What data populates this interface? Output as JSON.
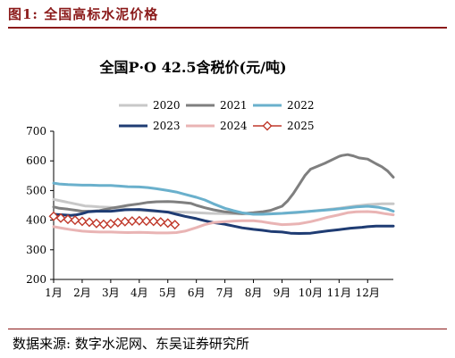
{
  "figure": {
    "label": "图1:  全国高标水泥价格",
    "source": "数据来源: 数字水泥网、东吴证券研究所"
  },
  "chart_data": {
    "type": "line",
    "title": "全国P·O 42.5含税价(元/吨)",
    "xlabel": "",
    "ylabel": "",
    "x_ticks": [
      "1月",
      "2月",
      "3月",
      "4月",
      "5月",
      "6月",
      "7月",
      "8月",
      "9月",
      "10月",
      "11月",
      "12月"
    ],
    "xlim": [
      1,
      12.9
    ],
    "ylim": [
      200,
      700
    ],
    "y_ticks": [
      200,
      300,
      400,
      500,
      600,
      700
    ],
    "grid": false,
    "legend": "top",
    "series": [
      {
        "name": "2020",
        "color": "#c8c8c8",
        "marker": "none",
        "points": [
          [
            1.0,
            470
          ],
          [
            1.1,
            468
          ],
          [
            1.25,
            465
          ],
          [
            1.4,
            462
          ],
          [
            1.5,
            460
          ],
          [
            1.6,
            458
          ],
          [
            1.75,
            455
          ],
          [
            1.9,
            452
          ],
          [
            2.0,
            450
          ],
          [
            2.1,
            448
          ],
          [
            2.3,
            447
          ],
          [
            2.6,
            445
          ],
          [
            3.0,
            443
          ],
          [
            3.3,
            440
          ],
          [
            3.6,
            437
          ],
          [
            4.0,
            433
          ],
          [
            4.5,
            430
          ],
          [
            5.0,
            428
          ],
          [
            5.5,
            427
          ],
          [
            6.0,
            425
          ],
          [
            6.5,
            423
          ],
          [
            7.0,
            422
          ],
          [
            7.5,
            421
          ],
          [
            8.0,
            421
          ],
          [
            8.5,
            422
          ],
          [
            9.0,
            423
          ],
          [
            9.5,
            425
          ],
          [
            10.0,
            430
          ],
          [
            10.5,
            435
          ],
          [
            11.0,
            440
          ],
          [
            11.5,
            447
          ],
          [
            12.0,
            452
          ],
          [
            12.5,
            455
          ],
          [
            12.9,
            455
          ]
        ]
      },
      {
        "name": "2021",
        "color": "#7f7f7f",
        "marker": "none",
        "points": [
          [
            1.0,
            445
          ],
          [
            1.2,
            440
          ],
          [
            1.5,
            437
          ],
          [
            1.8,
            433
          ],
          [
            2.0,
            430
          ],
          [
            2.3,
            430
          ],
          [
            2.6,
            432
          ],
          [
            3.0,
            440
          ],
          [
            3.3,
            445
          ],
          [
            3.6,
            450
          ],
          [
            4.0,
            455
          ],
          [
            4.3,
            460
          ],
          [
            4.6,
            462
          ],
          [
            5.0,
            463
          ],
          [
            5.2,
            462
          ],
          [
            5.5,
            460
          ],
          [
            5.8,
            457
          ],
          [
            6.0,
            450
          ],
          [
            6.3,
            442
          ],
          [
            6.6,
            435
          ],
          [
            7.0,
            428
          ],
          [
            7.3,
            425
          ],
          [
            7.6,
            422
          ],
          [
            8.0,
            425
          ],
          [
            8.3,
            428
          ],
          [
            8.6,
            433
          ],
          [
            8.8,
            440
          ],
          [
            9.0,
            447
          ],
          [
            9.2,
            465
          ],
          [
            9.4,
            490
          ],
          [
            9.6,
            520
          ],
          [
            9.8,
            550
          ],
          [
            10.0,
            572
          ],
          [
            10.5,
            592
          ],
          [
            11.0,
            615
          ],
          [
            11.1,
            618
          ],
          [
            11.3,
            621
          ],
          [
            11.5,
            617
          ],
          [
            11.7,
            610
          ],
          [
            12.0,
            606
          ],
          [
            12.3,
            590
          ],
          [
            12.5,
            580
          ],
          [
            12.7,
            566
          ],
          [
            12.9,
            545
          ]
        ]
      },
      {
        "name": "2022",
        "color": "#6ab0cc",
        "marker": "none",
        "points": [
          [
            1.0,
            525
          ],
          [
            1.2,
            522
          ],
          [
            1.5,
            520
          ],
          [
            1.8,
            519
          ],
          [
            2.0,
            518
          ],
          [
            2.3,
            518
          ],
          [
            2.6,
            517
          ],
          [
            3.0,
            517
          ],
          [
            3.3,
            515
          ],
          [
            3.6,
            513
          ],
          [
            4.0,
            512
          ],
          [
            4.3,
            510
          ],
          [
            4.6,
            506
          ],
          [
            5.0,
            500
          ],
          [
            5.3,
            495
          ],
          [
            5.6,
            487
          ],
          [
            6.0,
            477
          ],
          [
            6.3,
            468
          ],
          [
            6.6,
            455
          ],
          [
            7.0,
            440
          ],
          [
            7.3,
            432
          ],
          [
            7.6,
            425
          ],
          [
            8.0,
            420
          ],
          [
            8.3,
            420
          ],
          [
            8.6,
            421
          ],
          [
            9.0,
            423
          ],
          [
            9.3,
            425
          ],
          [
            9.6,
            427
          ],
          [
            10.0,
            430
          ],
          [
            10.4,
            433
          ],
          [
            10.8,
            436
          ],
          [
            11.2,
            440
          ],
          [
            11.6,
            445
          ],
          [
            12.0,
            447
          ],
          [
            12.4,
            443
          ],
          [
            12.7,
            437
          ],
          [
            12.9,
            430
          ]
        ]
      },
      {
        "name": "2023",
        "color": "#1f3c73",
        "marker": "none",
        "points": [
          [
            1.0,
            420
          ],
          [
            1.3,
            418
          ],
          [
            1.6,
            416
          ],
          [
            1.8,
            418
          ],
          [
            2.0,
            422
          ],
          [
            2.2,
            428
          ],
          [
            2.5,
            430
          ],
          [
            2.8,
            430
          ],
          [
            3.0,
            430
          ],
          [
            3.2,
            432
          ],
          [
            3.5,
            435
          ],
          [
            4.0,
            436
          ],
          [
            4.5,
            432
          ],
          [
            5.0,
            427
          ],
          [
            5.3,
            420
          ],
          [
            5.6,
            413
          ],
          [
            6.0,
            405
          ],
          [
            6.3,
            398
          ],
          [
            6.6,
            392
          ],
          [
            7.0,
            386
          ],
          [
            7.3,
            380
          ],
          [
            7.6,
            374
          ],
          [
            8.0,
            369
          ],
          [
            8.3,
            366
          ],
          [
            8.6,
            362
          ],
          [
            9.0,
            360
          ],
          [
            9.3,
            356
          ],
          [
            9.6,
            355
          ],
          [
            10.0,
            356
          ],
          [
            10.3,
            360
          ],
          [
            10.6,
            364
          ],
          [
            11.0,
            368
          ],
          [
            11.4,
            373
          ],
          [
            11.8,
            376
          ],
          [
            12.0,
            378
          ],
          [
            12.3,
            380
          ],
          [
            12.6,
            380
          ],
          [
            12.9,
            380
          ]
        ]
      },
      {
        "name": "2024",
        "color": "#e9b4b4",
        "marker": "none",
        "points": [
          [
            1.0,
            378
          ],
          [
            1.3,
            373
          ],
          [
            1.6,
            368
          ],
          [
            2.0,
            363
          ],
          [
            2.3,
            361
          ],
          [
            2.6,
            360
          ],
          [
            3.0,
            360
          ],
          [
            3.3,
            359
          ],
          [
            3.6,
            358
          ],
          [
            4.0,
            359
          ],
          [
            4.3,
            358
          ],
          [
            4.6,
            357
          ],
          [
            5.0,
            357
          ],
          [
            5.3,
            358
          ],
          [
            5.6,
            363
          ],
          [
            6.0,
            375
          ],
          [
            6.3,
            385
          ],
          [
            6.6,
            392
          ],
          [
            7.0,
            395
          ],
          [
            7.3,
            397
          ],
          [
            7.6,
            398
          ],
          [
            8.0,
            398
          ],
          [
            8.3,
            395
          ],
          [
            8.6,
            390
          ],
          [
            9.0,
            385
          ],
          [
            9.3,
            386
          ],
          [
            9.6,
            388
          ],
          [
            10.0,
            395
          ],
          [
            10.3,
            402
          ],
          [
            10.6,
            410
          ],
          [
            11.0,
            418
          ],
          [
            11.3,
            425
          ],
          [
            11.6,
            428
          ],
          [
            12.0,
            429
          ],
          [
            12.3,
            427
          ],
          [
            12.6,
            422
          ],
          [
            12.9,
            418
          ]
        ]
      },
      {
        "name": "2025",
        "color": "#c0392b",
        "marker": "diamond",
        "points": [
          [
            1.0,
            413
          ],
          [
            1.25,
            407
          ],
          [
            1.5,
            403
          ],
          [
            1.75,
            400
          ],
          [
            2.0,
            396
          ],
          [
            2.25,
            393
          ],
          [
            2.5,
            389
          ],
          [
            2.75,
            386
          ],
          [
            3.0,
            388
          ],
          [
            3.25,
            392
          ],
          [
            3.5,
            395
          ],
          [
            3.75,
            397
          ],
          [
            4.0,
            398
          ],
          [
            4.25,
            397
          ],
          [
            4.5,
            396
          ],
          [
            4.75,
            394
          ],
          [
            5.0,
            390
          ],
          [
            5.25,
            385
          ]
        ]
      }
    ]
  }
}
